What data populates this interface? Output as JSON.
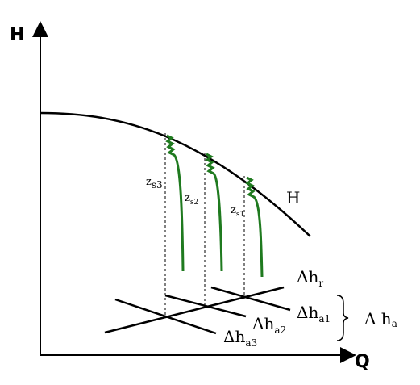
{
  "axes": {
    "y": "H",
    "x": "Q"
  },
  "curve_label": "H",
  "labels": {
    "zs3": {
      "base": "z",
      "sub": "s3"
    },
    "zs2": {
      "base": "z",
      "sub": "s2"
    },
    "zs1": {
      "base": "z",
      "sub": "s1"
    },
    "dhr": {
      "base": "Δh",
      "sub": "r"
    },
    "dha1": {
      "base": "Δh",
      "sub": "a1"
    },
    "dha2": {
      "base": "Δh",
      "sub": "a2"
    },
    "dha3": {
      "base": "Δh",
      "sub": "a3"
    },
    "dha": {
      "base": "Δ h",
      "sub": "a"
    }
  }
}
